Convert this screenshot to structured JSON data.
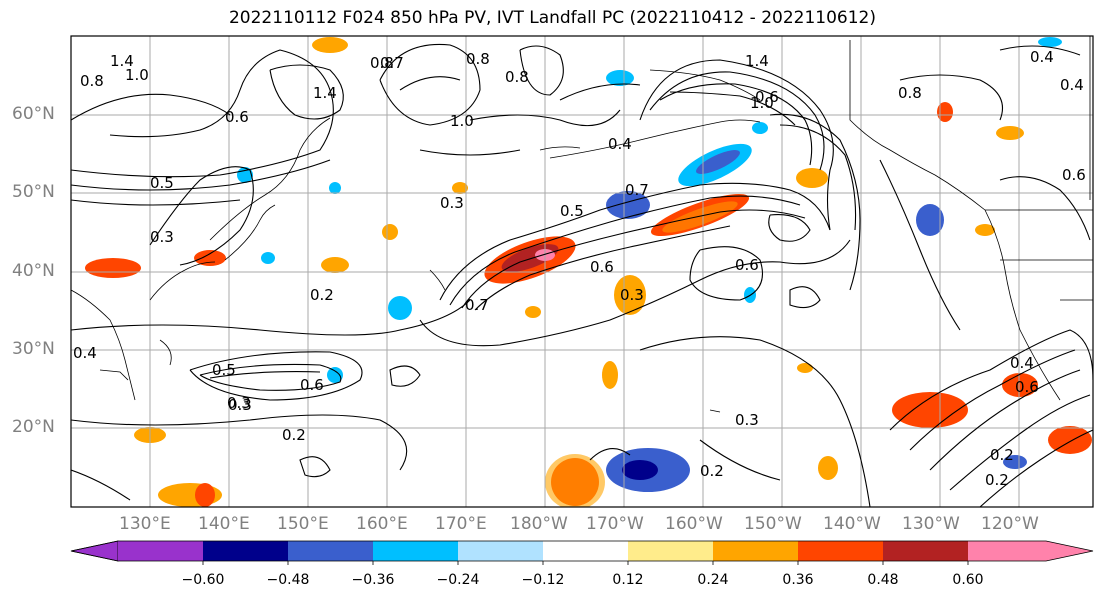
{
  "title": "2022110112 F024 850 hPa PV, IVT Landfall PC (2022110412 - 2022110612)",
  "axes": {
    "lat_labels": [
      "60°N",
      "50°N",
      "40°N",
      "30°N",
      "20°N"
    ],
    "lon_labels": [
      "130°E",
      "140°E",
      "150°E",
      "160°E",
      "170°E",
      "180°W",
      "170°W",
      "160°W",
      "150°W",
      "140°W",
      "130°W",
      "120°W"
    ],
    "label_color": "#808080"
  },
  "colorbar": {
    "ticks": [
      "−0.60",
      "−0.48",
      "−0.36",
      "−0.24",
      "−0.12",
      "0.12",
      "0.24",
      "0.36",
      "0.48",
      "0.60"
    ],
    "colors": [
      "#9932cc",
      "#00008b",
      "#3a5fcd",
      "#00bfff",
      "#b0e2ff",
      "#ffffff",
      "#ffec8b",
      "#ffa500",
      "#ff4500",
      "#b22222",
      "#ff82ab"
    ]
  },
  "contour_labels": [
    "1.4",
    "1.0",
    "0.8",
    "0.6",
    "0.5",
    "0.4",
    "0.3",
    "0.2",
    "0.7",
    "1.4",
    "0.8",
    "1.0",
    "0.4",
    "0.5",
    "0.7",
    "0.8",
    "1.0",
    "0.6",
    "0.3",
    "0.5",
    "0.6",
    "0.3",
    "0.2",
    "0.2",
    "0.3",
    "0.8",
    "0.6",
    "0.4",
    "0.2",
    "0.4",
    "0.6",
    "0.3",
    "0.8",
    "0.3",
    "0.6",
    "0.4",
    "1.4",
    "0.7",
    "0.6",
    "0.2"
  ]
}
